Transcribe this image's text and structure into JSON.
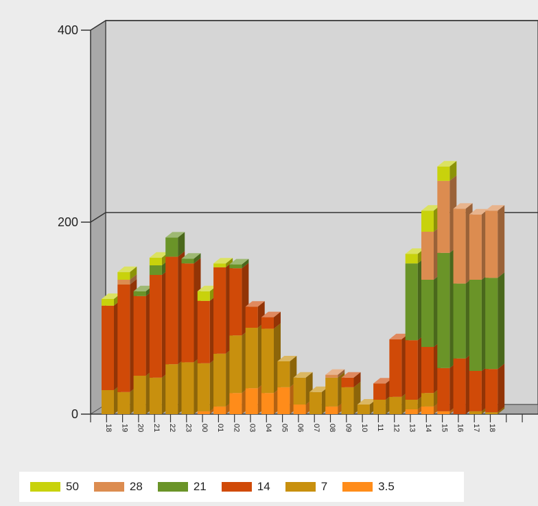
{
  "chart_data": {
    "type": "bar",
    "stacked": true,
    "three_d": true,
    "title": "",
    "xlabel": "",
    "ylabel": "",
    "ylim": [
      0,
      400
    ],
    "y_ticks": [
      "0",
      "200",
      "400"
    ],
    "grid": true,
    "legend_position": "bottom",
    "categories": [
      "18",
      "19",
      "20",
      "21",
      "22",
      "23",
      "00",
      "01",
      "02",
      "03",
      "04",
      "05",
      "06",
      "07",
      "08",
      "09",
      "10",
      "11",
      "12",
      "13",
      "14",
      "15",
      "16",
      "17",
      "18"
    ],
    "series": [
      {
        "name": "3.5",
        "color": "#ff8c1a",
        "values": [
          0,
          0,
          0,
          0,
          0,
          0,
          3,
          8,
          22,
          27,
          22,
          28,
          10,
          0,
          8,
          0,
          0,
          0,
          0,
          5,
          8,
          3,
          0,
          0,
          0
        ]
      },
      {
        "name": "7",
        "color": "#c8900e",
        "values": [
          25,
          23,
          40,
          38,
          52,
          54,
          50,
          55,
          60,
          63,
          67,
          27,
          28,
          23,
          30,
          28,
          10,
          15,
          18,
          10,
          14,
          0,
          0,
          3,
          2
        ]
      },
      {
        "name": "14",
        "color": "#d04a08",
        "values": [
          88,
          112,
          83,
          107,
          112,
          103,
          65,
          90,
          70,
          22,
          12,
          0,
          0,
          0,
          0,
          10,
          0,
          17,
          60,
          62,
          48,
          45,
          58,
          42,
          45
        ]
      },
      {
        "name": "21",
        "color": "#6a9428",
        "values": [
          0,
          0,
          5,
          10,
          20,
          5,
          0,
          0,
          4,
          0,
          0,
          0,
          0,
          0,
          0,
          0,
          0,
          0,
          0,
          80,
          70,
          120,
          78,
          95,
          95
        ]
      },
      {
        "name": "28",
        "color": "#dc8c50",
        "values": [
          0,
          5,
          0,
          0,
          0,
          0,
          0,
          0,
          0,
          0,
          0,
          0,
          0,
          0,
          3,
          0,
          0,
          0,
          0,
          0,
          50,
          75,
          78,
          68,
          70
        ]
      },
      {
        "name": "50",
        "color": "#c8d20c",
        "values": [
          7,
          8,
          0,
          8,
          0,
          0,
          10,
          4,
          0,
          0,
          0,
          0,
          0,
          0,
          0,
          0,
          0,
          0,
          0,
          10,
          22,
          15,
          0,
          0,
          0
        ]
      }
    ]
  },
  "legend_order": [
    "50",
    "28",
    "21",
    "14",
    "7",
    "3.5"
  ]
}
